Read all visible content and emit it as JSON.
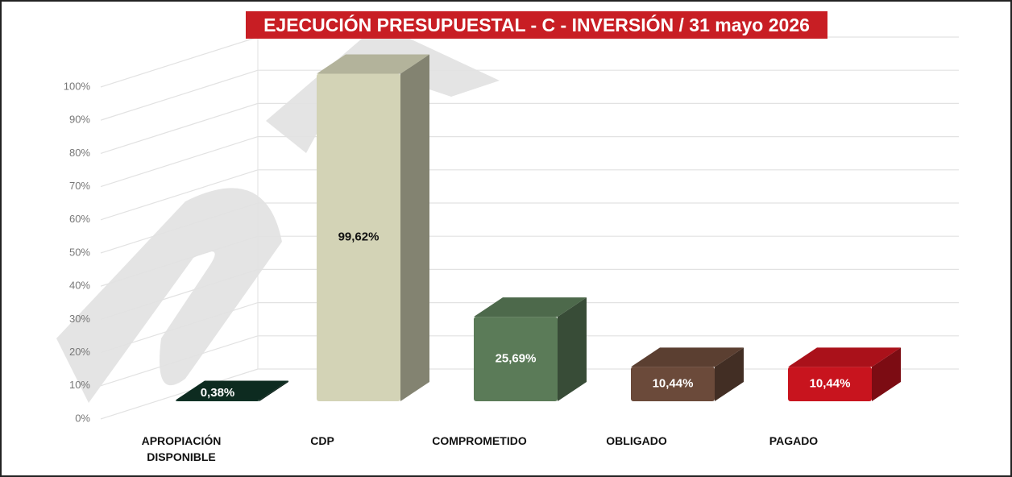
{
  "chart_data": {
    "type": "bar3d",
    "title": "EJECUCIÓN PRESUPUESTAL - C - INVERSIÓN / 31 mayo 2026",
    "categories": [
      "APROPIACIÓN DISPONIBLE",
      "CDP",
      "COMPROMETIDO",
      "OBLIGADO",
      "PAGADO"
    ],
    "values": [
      0.38,
      99.62,
      25.69,
      10.44,
      10.44
    ],
    "value_labels": [
      "0,38%",
      "99,62%",
      "25,69%",
      "10,44%",
      "10,44%"
    ],
    "colors": [
      "#0f3326",
      "#d3d3b6",
      "#5b7b58",
      "#6b4a3a",
      "#c8141e"
    ],
    "ylim": [
      0,
      100
    ],
    "yticks": [
      {
        "value": 0,
        "label": "0%"
      },
      {
        "value": 10,
        "label": "10%"
      },
      {
        "value": 20,
        "label": "20%"
      },
      {
        "value": 30,
        "label": "30%"
      },
      {
        "value": 40,
        "label": "40%"
      },
      {
        "value": 50,
        "label": "50%"
      },
      {
        "value": 60,
        "label": "60%"
      },
      {
        "value": 70,
        "label": "70%"
      },
      {
        "value": 80,
        "label": "80%"
      },
      {
        "value": 90,
        "label": "90%"
      },
      {
        "value": 100,
        "label": "100%"
      }
    ],
    "grid": true
  }
}
